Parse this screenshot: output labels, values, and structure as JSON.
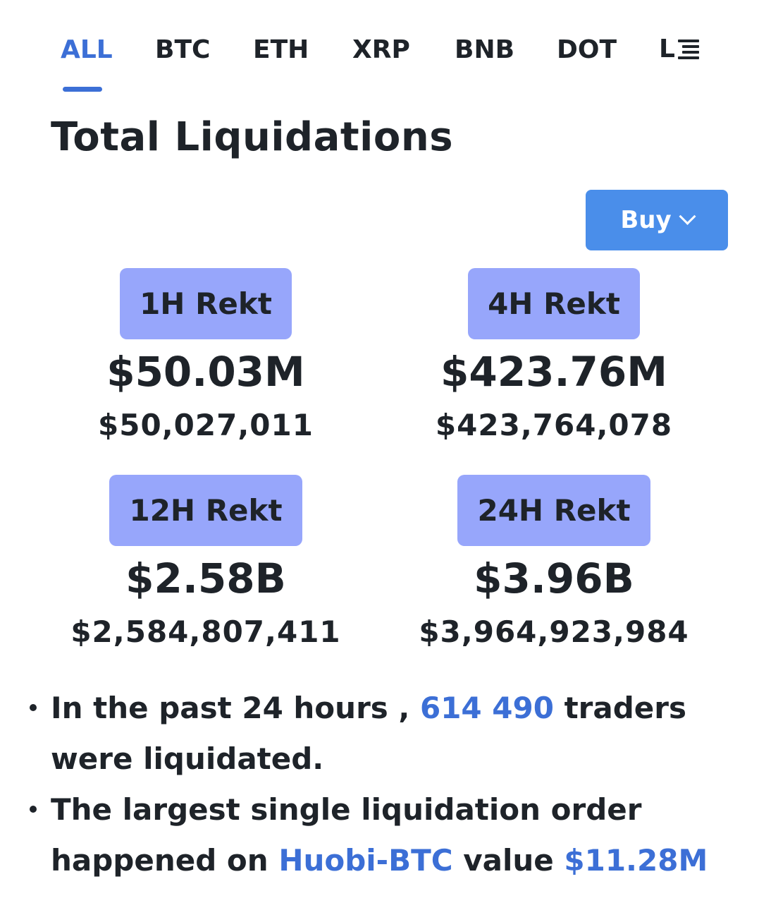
{
  "tabs": [
    {
      "label": "ALL",
      "active": true
    },
    {
      "label": "BTC",
      "active": false
    },
    {
      "label": "ETH",
      "active": false
    },
    {
      "label": "XRP",
      "active": false
    },
    {
      "label": "BNB",
      "active": false
    },
    {
      "label": "DOT",
      "active": false
    },
    {
      "label": "L",
      "active": false
    }
  ],
  "tabs_more_icon": "list-icon",
  "page_title": "Total Liquidations",
  "buy_button": {
    "label": "Buy",
    "icon": "chevron-down-icon"
  },
  "stats": [
    {
      "label": "1H Rekt",
      "short": "$50.03M",
      "exact": "$50,027,011"
    },
    {
      "label": "4H Rekt",
      "short": "$423.76M",
      "exact": "$423,764,078"
    },
    {
      "label": "12H Rekt",
      "short": "$2.58B",
      "exact": "$2,584,807,411"
    },
    {
      "label": "24H Rekt",
      "short": "$3.96B",
      "exact": "$3,964,923,984"
    }
  ],
  "bullets": {
    "traders": {
      "prefix": "In the past 24 hours ,",
      "count": "614 490",
      "suffix_1": "traders",
      "suffix_2": "were liquidated."
    },
    "largest": {
      "line_1": "The largest single liquidation order",
      "prefix": "happened on",
      "exchange": "Huobi-BTC",
      "middle": "value",
      "value": "$11.28M"
    }
  },
  "colors": {
    "accent": "#3c6fd6",
    "buy_button": "#4a8eea",
    "badge": "#97a6fb",
    "text": "#1e2329"
  }
}
